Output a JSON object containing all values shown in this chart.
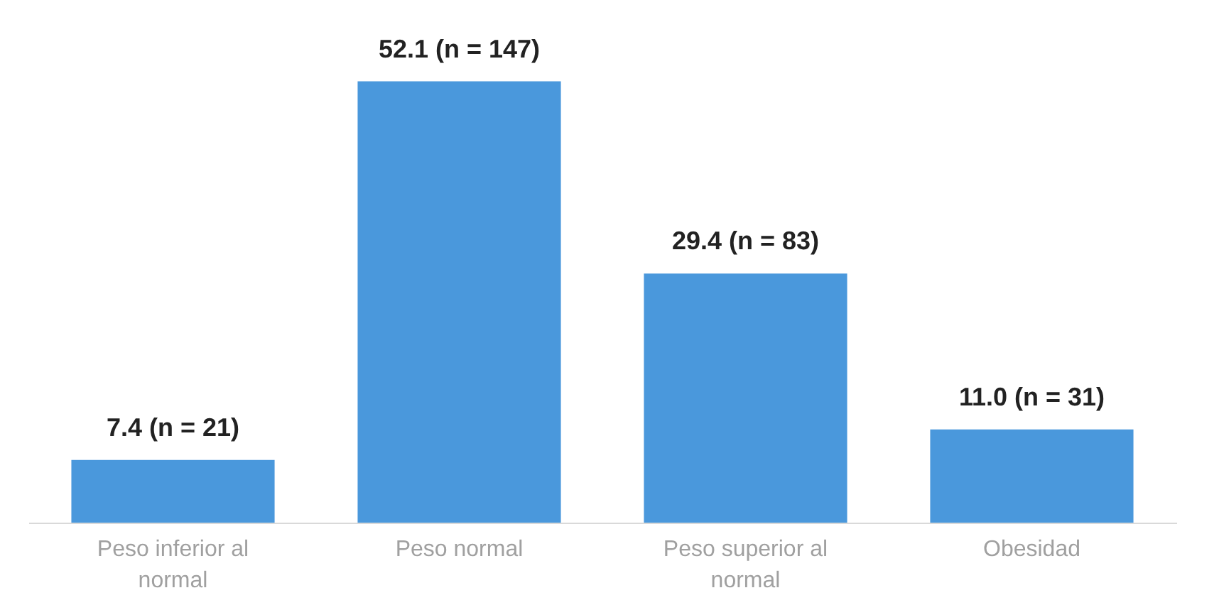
{
  "chart_data": {
    "type": "bar",
    "categories": [
      "Peso inferior al normal",
      "Peso normal",
      "Peso superior al normal",
      "Obesidad"
    ],
    "values": [
      7.4,
      52.1,
      29.4,
      11.0
    ],
    "value_labels": [
      "7.4 (n = 21)",
      "52.1 (n = 147)",
      "29.4 (n = 83)",
      "11.0 (n = 31)"
    ],
    "color": "#4a98dc"
  }
}
